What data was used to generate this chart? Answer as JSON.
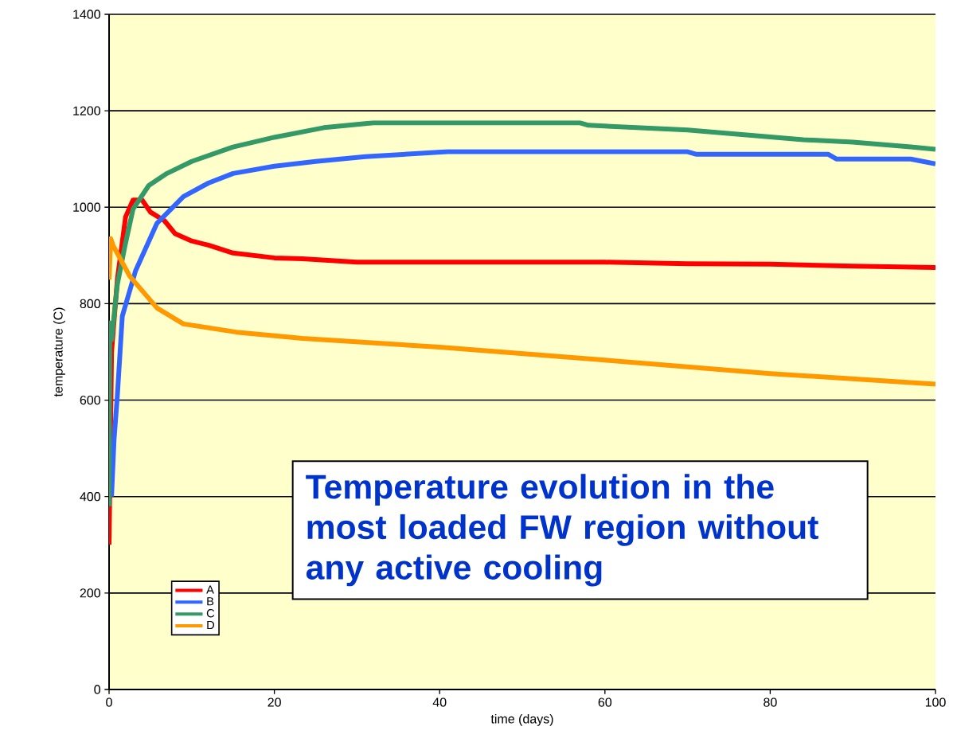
{
  "chart_data": {
    "type": "line",
    "xlabel": "time (days)",
    "ylabel": "temperature (C)",
    "xlim": [
      0,
      100
    ],
    "ylim": [
      0,
      1400
    ],
    "xticks": [
      0,
      20,
      40,
      60,
      80,
      100
    ],
    "yticks": [
      0,
      200,
      400,
      600,
      800,
      1000,
      1200,
      1400
    ],
    "grid": "y",
    "legend": "bottom left",
    "line_style": "solid",
    "marker": "none",
    "annotations": [
      "Temperature evolution in the most loaded FW region without any active cooling"
    ],
    "series": [
      {
        "name": "A",
        "color": "#ff0000",
        "x": [
          0,
          0.3,
          1,
          2,
          2.9,
          4,
          5,
          6.7,
          8,
          10,
          12.1,
          15,
          20,
          23.4,
          30,
          40,
          60,
          70,
          80,
          90,
          100
        ],
        "values": [
          300,
          700,
          850,
          980,
          1015,
          1015,
          990,
          972,
          945,
          930,
          921,
          905,
          895,
          893,
          886,
          886,
          886,
          883,
          882,
          878,
          875
        ]
      },
      {
        "name": "B",
        "color": "#3366ff",
        "x": [
          0.3,
          0.6,
          1,
          1.6,
          3.2,
          5.8,
          9,
          12,
          15,
          20,
          25,
          31,
          41,
          70,
          71,
          87,
          88,
          97,
          100
        ],
        "values": [
          400,
          517,
          609,
          774,
          868,
          967,
          1022,
          1050,
          1070,
          1085,
          1095,
          1105,
          1115,
          1115,
          1110,
          1110,
          1100,
          1100,
          1090
        ]
      },
      {
        "name": "C",
        "color": "#339966",
        "x": [
          0,
          0.1,
          0.3,
          1,
          1.9,
          2.9,
          4.8,
          7,
          10,
          15,
          20,
          26,
          32,
          57,
          58,
          70,
          84,
          90,
          97,
          100
        ],
        "values": [
          380,
          760,
          725,
          840,
          918,
          996,
          1045,
          1070,
          1095,
          1125,
          1145,
          1165,
          1175,
          1175,
          1170,
          1160,
          1140,
          1135,
          1125,
          1120
        ]
      },
      {
        "name": "D",
        "color": "#ff9900",
        "x": [
          0,
          0.2,
          0.5,
          2.5,
          5.8,
          9,
          15.4,
          23.4,
          40,
          60,
          80,
          100
        ],
        "values": [
          850,
          935,
          920,
          857,
          791,
          758,
          741,
          728,
          710,
          683,
          655,
          633
        ]
      }
    ]
  }
}
